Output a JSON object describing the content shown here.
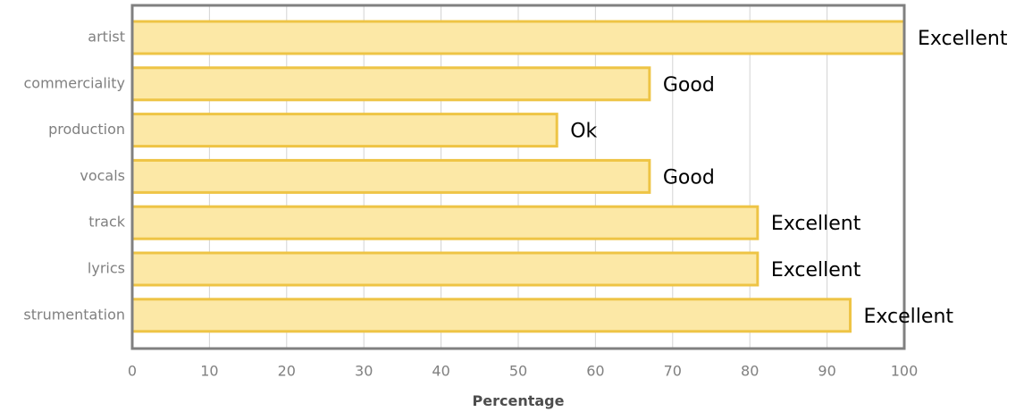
{
  "chart_data": {
    "type": "bar",
    "orientation": "horizontal",
    "categories": [
      "artist",
      "commerciality",
      "production",
      "vocals",
      "track",
      "lyrics",
      "strumentation"
    ],
    "values": [
      100,
      67,
      55,
      67,
      81,
      81,
      93
    ],
    "data_labels": [
      "Excellent",
      "Good",
      "Ok",
      "Good",
      "Excellent",
      "Excellent",
      "Excellent"
    ],
    "xlabel": "Percentage",
    "ylabel": "",
    "xlim": [
      0,
      100
    ],
    "xticks": [
      0,
      10,
      20,
      30,
      40,
      50,
      60,
      70,
      80,
      90,
      100
    ],
    "grid": true,
    "colors": {
      "bar_fill": "#fce8a6",
      "bar_edge": "#eec445",
      "grid": "#d3d3d3",
      "frame": "#808080"
    }
  }
}
